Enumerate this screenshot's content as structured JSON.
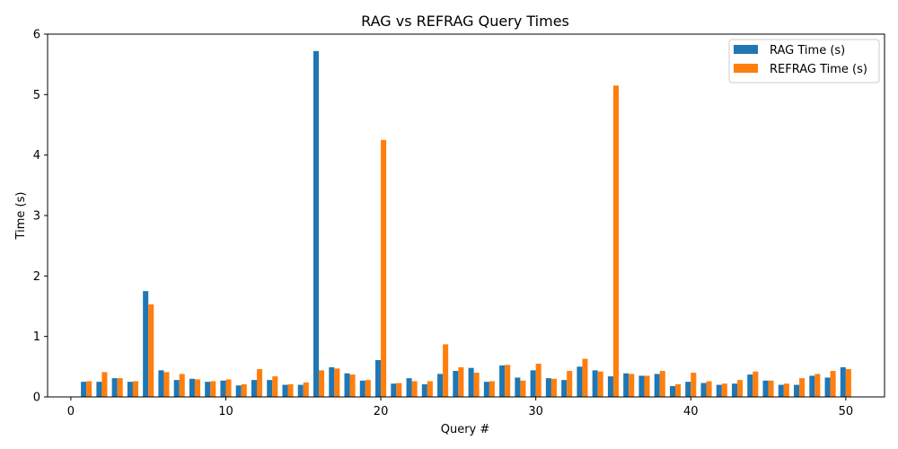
{
  "chart_data": {
    "type": "bar",
    "title": "RAG vs REFRAG Query Times",
    "xlabel": "Query #",
    "ylabel": "Time (s)",
    "xlim": [
      -1.5,
      52.5
    ],
    "ylim": [
      0,
      6
    ],
    "xticks": [
      0,
      10,
      20,
      30,
      40,
      50
    ],
    "yticks": [
      0,
      1,
      2,
      3,
      4,
      5,
      6
    ],
    "grid": false,
    "legend_position": "top-right",
    "x": [
      1,
      2,
      3,
      4,
      5,
      6,
      7,
      8,
      9,
      10,
      11,
      12,
      13,
      14,
      15,
      16,
      17,
      18,
      19,
      20,
      21,
      22,
      23,
      24,
      25,
      26,
      27,
      28,
      29,
      30,
      31,
      32,
      33,
      34,
      35,
      36,
      37,
      38,
      39,
      40,
      41,
      42,
      43,
      44,
      45,
      46,
      47,
      48,
      49,
      50
    ],
    "series": [
      {
        "name": "RAG Time (s)",
        "color": "#1f77b4",
        "values": [
          0.25,
          0.25,
          0.31,
          0.25,
          1.75,
          0.44,
          0.28,
          0.3,
          0.25,
          0.27,
          0.19,
          0.28,
          0.28,
          0.2,
          0.2,
          5.72,
          0.49,
          0.39,
          0.27,
          0.61,
          0.22,
          0.31,
          0.21,
          0.38,
          0.43,
          0.48,
          0.25,
          0.52,
          0.32,
          0.44,
          0.31,
          0.28,
          0.5,
          0.44,
          0.34,
          0.39,
          0.35,
          0.38,
          0.18,
          0.25,
          0.23,
          0.2,
          0.22,
          0.37,
          0.27,
          0.2,
          0.2,
          0.35,
          0.32,
          0.49
        ]
      },
      {
        "name": "REFRAG Time (s)",
        "color": "#ff7f0e",
        "values": [
          0.26,
          0.41,
          0.31,
          0.26,
          1.53,
          0.41,
          0.38,
          0.29,
          0.26,
          0.29,
          0.21,
          0.46,
          0.34,
          0.21,
          0.24,
          0.44,
          0.47,
          0.37,
          0.28,
          4.25,
          0.23,
          0.26,
          0.26,
          0.87,
          0.49,
          0.4,
          0.26,
          0.53,
          0.27,
          0.55,
          0.3,
          0.43,
          0.63,
          0.42,
          5.15,
          0.38,
          0.35,
          0.43,
          0.21,
          0.4,
          0.26,
          0.22,
          0.28,
          0.42,
          0.27,
          0.22,
          0.31,
          0.38,
          0.43,
          0.46
        ]
      }
    ]
  }
}
